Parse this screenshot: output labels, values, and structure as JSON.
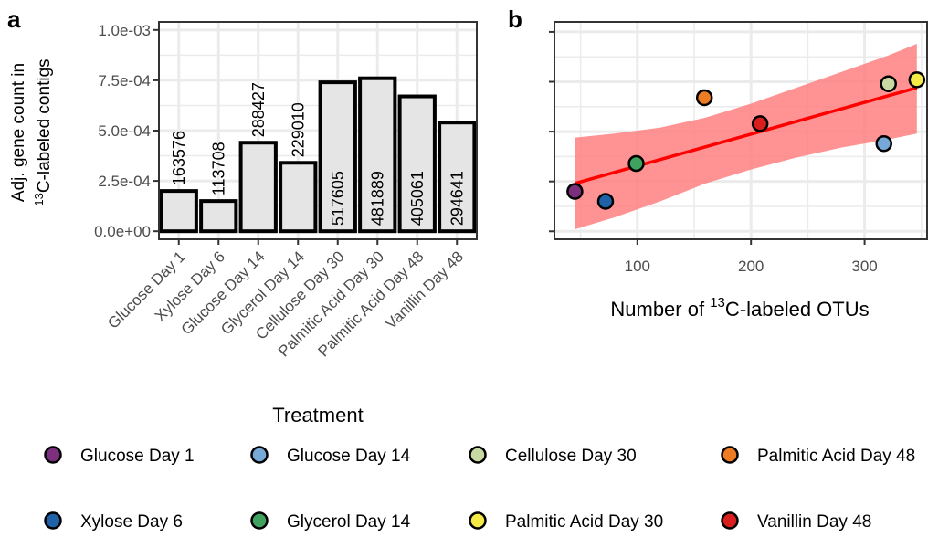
{
  "colors": {
    "Glucose Day 1": "#7B2F7C",
    "Xylose Day 6": "#1F62A8",
    "Glucose Day 14": "#76A9D8",
    "Glycerol Day 14": "#3FA35F",
    "Cellulose Day 30": "#C9D9A3",
    "Palmitic Acid Day 30": "#F4EB47",
    "Palmitic Acid Day 48": "#EE7C22",
    "Vanillin Day 48": "#D91E1E"
  },
  "chart_data": [
    {
      "panel": "a",
      "type": "bar",
      "xlabel": "Treatment",
      "ylabel_line1": "Adj. gene count in",
      "ylabel_line2_sup": "13",
      "ylabel_line2_rest": "C-labeled contigs",
      "ylim": [
        0,
        0.001
      ],
      "yticks": [
        0,
        0.00025,
        0.0005,
        0.00075,
        0.001
      ],
      "ytick_labels": [
        "0.0e+00",
        "2.5e-04",
        "5.0e-04",
        "7.5e-04",
        "1.0e-03"
      ],
      "categories": [
        "Glucose Day 1",
        "Xylose Day 6",
        "Glucose Day 14",
        "Glycerol Day 14",
        "Cellulose Day 30",
        "Palmitic Acid Day 30",
        "Palmitic Acid Day 48",
        "Vanillin Day 48"
      ],
      "values": [
        0.0002,
        0.00015,
        0.00044,
        0.00034,
        0.00074,
        0.00076,
        0.00067,
        0.00054
      ],
      "bar_labels": [
        "163576",
        "113708",
        "288427",
        "229010",
        "517605",
        "481889",
        "405061",
        "294641"
      ],
      "bar_label_inside": [
        false,
        false,
        false,
        false,
        true,
        true,
        true,
        true
      ],
      "grid": true,
      "bar_fill": "#e5e5e5"
    },
    {
      "panel": "b",
      "type": "scatter",
      "xlabel_prefix": "Number of ",
      "xlabel_sup": "13",
      "xlabel_suffix": "C-labeled OTUs",
      "xlim": [
        27,
        355
      ],
      "ylim": [
        -4e-05,
        0.00105
      ],
      "xticks": [
        100,
        200,
        300
      ],
      "yticks": [
        0,
        0.00025,
        0.0005,
        0.00075,
        0.001
      ],
      "grid": true,
      "points": [
        {
          "name": "Glucose Day 1",
          "x": 45,
          "y": 0.0002
        },
        {
          "name": "Xylose Day 6",
          "x": 72,
          "y": 0.00015
        },
        {
          "name": "Glucose Day 14",
          "x": 317,
          "y": 0.00044
        },
        {
          "name": "Glycerol Day 14",
          "x": 99,
          "y": 0.00034
        },
        {
          "name": "Cellulose Day 30",
          "x": 321,
          "y": 0.00074
        },
        {
          "name": "Palmitic Acid Day 30",
          "x": 346,
          "y": 0.00076
        },
        {
          "name": "Palmitic Acid Day 48",
          "x": 159,
          "y": 0.00067
        },
        {
          "name": "Vanillin Day 48",
          "x": 208,
          "y": 0.00054
        }
      ],
      "fit_line": {
        "x": [
          45,
          346
        ],
        "y": [
          0.00024,
          0.00072
        ],
        "color": "#ff0000"
      },
      "confidence_band": {
        "color": "#ff8080",
        "x": [
          45,
          80,
          120,
          160,
          200,
          240,
          280,
          320,
          346
        ],
        "upper": [
          0.00047,
          0.00049,
          0.00052,
          0.00057,
          0.00064,
          0.00072,
          0.0008,
          0.00088,
          0.00094
        ],
        "lower": [
          1e-05,
          7e-05,
          0.00015,
          0.00024,
          0.00031,
          0.00037,
          0.00042,
          0.00046,
          0.00049
        ]
      }
    }
  ],
  "legend": {
    "placement": "bottom",
    "items": [
      "Glucose Day 1",
      "Glucose Day 14",
      "Cellulose Day 30",
      "Palmitic Acid Day 48",
      "Xylose Day 6",
      "Glycerol Day 14",
      "Palmitic Acid Day 30",
      "Vanillin Day 48"
    ]
  },
  "panel_labels": {
    "a": "a",
    "b": "b"
  }
}
